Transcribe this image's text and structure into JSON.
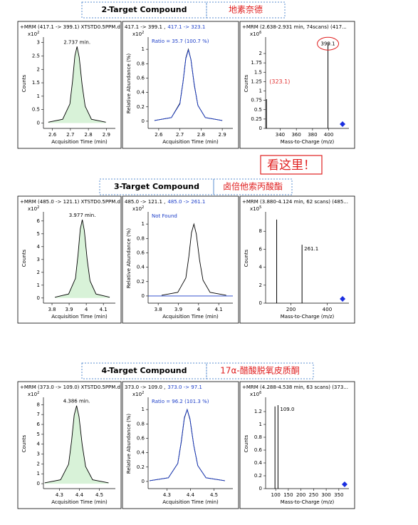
{
  "sections": [
    {
      "title": "2-Target Compound",
      "name": "地素奈德",
      "panels": [
        {
          "kind": "chromatogram",
          "header": "+MRM (417.1 -> 399.1) XTSTD0.5PPM.d",
          "peak_label": "2.737 min.",
          "y_label": "Counts",
          "multiplier": "x10",
          "exponent": "2",
          "x_label": "Acquisition Time (min)",
          "xlim": [
            2.55,
            2.95
          ],
          "xticks": [
            2.6,
            2.7,
            2.8,
            2.9
          ],
          "ylim": [
            -0.2,
            3.15
          ],
          "yticks": [
            0,
            0.5,
            1,
            1.5,
            2,
            2.5,
            3
          ],
          "trace": {
            "x": [
              2.577,
              2.657,
              2.697,
              2.712,
              2.725,
              2.737,
              2.749,
              2.765,
              2.782,
              2.817,
              2.897
            ],
            "y": [
              0.03,
              0.14,
              0.71,
              1.57,
              2.51,
              2.85,
              2.45,
              1.43,
              0.63,
              0.14,
              0.03
            ]
          }
        },
        {
          "kind": "ratio",
          "header": "417.1 -> 399.1 ,",
          "header_highlight": "417.1 -> 323.1",
          "note": "Ratio = 35.7 (100.7 %)",
          "y_label": "Relative Abundance (%)",
          "multiplier": "x10",
          "exponent": "2",
          "x_label": "Acquisition Time (min)",
          "xlim": [
            2.55,
            2.95
          ],
          "xticks": [
            2.6,
            2.7,
            2.8,
            2.9
          ],
          "ylim": [
            -0.1,
            1.15
          ],
          "yticks": [
            0,
            0.2,
            0.4,
            0.6,
            0.8,
            1
          ],
          "trace": {
            "x": [
              2.58,
              2.66,
              2.7,
              2.715,
              2.728,
              2.74,
              2.752,
              2.768,
              2.785,
              2.82,
              2.9
            ],
            "y": [
              0.01,
              0.05,
              0.25,
              0.55,
              0.88,
              1,
              0.86,
              0.5,
              0.22,
              0.05,
              0.01
            ]
          },
          "trace2": {
            "x": [
              2.58,
              2.66,
              2.7,
              2.715,
              2.728,
              2.74,
              2.752,
              2.768,
              2.785,
              2.82,
              2.9
            ],
            "y": [
              0.01,
              0.05,
              0.24,
              0.55,
              0.87,
              0.99,
              0.86,
              0.51,
              0.22,
              0.05,
              0.01
            ]
          }
        },
        {
          "kind": "spectrum",
          "header": "+MRM (2.638-2.931 min, 74scans) (417...",
          "y_label": "Counts",
          "multiplier": "x10",
          "exponent": "6",
          "x_label": "Mass-to-Charge (m/z)",
          "xlim": [
            322,
            425
          ],
          "xticks": [
            340,
            360,
            380,
            400
          ],
          "ylim": [
            0,
            2.4
          ],
          "yticks": [
            0,
            0.25,
            0.5,
            0.75,
            1,
            1.25,
            1.5,
            1.75,
            2
          ],
          "peaks": [
            {
              "mz": 323.1,
              "intensity": 0.78,
              "label": "(323.1)",
              "label_color": "#e03030"
            },
            {
              "mz": 399.1,
              "intensity": 2.3,
              "label": "399.1",
              "circled": true
            }
          ],
          "precursor": 417.1
        }
      ]
    },
    {
      "title": "3-Target Compound",
      "name": "卤倍他索丙酸酯",
      "panels": [
        {
          "kind": "chromatogram",
          "header": "+MRM (485.0 -> 121.1) XTSTD0.5PPM.d",
          "peak_label": "3.977 min.",
          "y_label": "Counts",
          "multiplier": "x10",
          "exponent": "2",
          "x_label": "Acquisition Time (min)",
          "xlim": [
            3.75,
            4.17
          ],
          "xticks": [
            3.8,
            3.9,
            4,
            4.1
          ],
          "ylim": [
            -0.4,
            6.6
          ],
          "yticks": [
            0,
            1,
            2,
            3,
            4,
            5,
            6
          ],
          "trace": {
            "x": [
              3.817,
              3.897,
              3.937,
              3.952,
              3.965,
              3.977,
              3.989,
              4.005,
              4.022,
              4.057,
              4.137
            ],
            "y": [
              0.06,
              0.31,
              1.53,
              3.36,
              5.37,
              6.1,
              5.25,
              3.05,
              1.34,
              0.31,
              0.06
            ]
          }
        },
        {
          "kind": "ratio",
          "header": "485.0 -> 121.1 ,",
          "header_highlight": "485.0 -> 261.1",
          "note": "Not Found",
          "y_label": "Relative Abundance (%)",
          "multiplier": "x10",
          "exponent": "2",
          "x_label": "Acquisition Time (min)",
          "xlim": [
            3.75,
            4.17
          ],
          "xticks": [
            3.8,
            3.9,
            4,
            4.1
          ],
          "ylim": [
            -0.1,
            1.15
          ],
          "yticks": [
            0,
            0.2,
            0.4,
            0.6,
            0.8,
            1
          ],
          "trace": {
            "x": [
              3.817,
              3.897,
              3.937,
              3.952,
              3.965,
              3.977,
              3.989,
              4.005,
              4.022,
              4.057,
              4.137
            ],
            "y": [
              0.01,
              0.05,
              0.25,
              0.55,
              0.88,
              1,
              0.86,
              0.5,
              0.22,
              0.05,
              0.01
            ]
          },
          "trace2": {
            "x": [
              3.75,
              4.17
            ],
            "y": [
              0,
              0
            ]
          }
        },
        {
          "kind": "spectrum",
          "header": "+MRM (3.880-4.124 min, 62 scans) (485...",
          "y_label": "Counts",
          "multiplier": "x10",
          "exponent": "5",
          "x_label": "Mass-to-Charge (m/z)",
          "xlim": [
            60,
            520
          ],
          "xticks": [
            200,
            400
          ],
          "ylim": [
            0,
            10
          ],
          "yticks": [
            0,
            2,
            4,
            6,
            8
          ],
          "peaks": [
            {
              "mz": 121.1,
              "intensity": 9.3
            },
            {
              "mz": 261.1,
              "intensity": 6.5,
              "label": "261.1"
            }
          ],
          "precursor": 485.0
        }
      ]
    },
    {
      "title": "4-Target Compound",
      "name": "17α-醋酸脱氧皮质酮",
      "panels": [
        {
          "kind": "chromatogram",
          "header": "+MRM (373.0 -> 109.0) XTSTD0.5PPM.d",
          "peak_label": "4.386 min.",
          "y_label": "Counts",
          "multiplier": "x10",
          "exponent": "2",
          "x_label": "Acquisition Time (min)",
          "xlim": [
            4.22,
            4.58
          ],
          "xticks": [
            4.3,
            4.4,
            4.5
          ],
          "ylim": [
            -0.5,
            8.6
          ],
          "yticks": [
            0,
            1,
            2,
            3,
            4,
            5,
            6,
            7,
            8
          ],
          "trace": {
            "x": [
              4.226,
              4.306,
              4.346,
              4.361,
              4.374,
              4.386,
              4.398,
              4.414,
              4.431,
              4.466,
              4.546
            ],
            "y": [
              0.08,
              0.4,
              1.98,
              4.35,
              6.95,
              7.9,
              6.79,
              3.95,
              1.74,
              0.4,
              0.08
            ]
          }
        },
        {
          "kind": "ratio",
          "header": "373.0 -> 109.0 ,",
          "header_highlight": "373.0 -> 97.1",
          "note": "Ratio = 96.2 (101.3 %)",
          "y_label": "Relative Abundance (%)",
          "multiplier": "x10",
          "exponent": "2",
          "x_label": "Acquisition Time (min)",
          "xlim": [
            4.22,
            4.58
          ],
          "xticks": [
            4.3,
            4.4,
            4.5
          ],
          "ylim": [
            -0.1,
            1.15
          ],
          "yticks": [
            0,
            0.2,
            0.4,
            0.6,
            0.8,
            1
          ],
          "trace": {
            "x": [
              4.226,
              4.306,
              4.346,
              4.361,
              4.374,
              4.386,
              4.398,
              4.414,
              4.431,
              4.466,
              4.546
            ],
            "y": [
              0.01,
              0.05,
              0.25,
              0.55,
              0.88,
              1,
              0.86,
              0.5,
              0.22,
              0.05,
              0.01
            ]
          },
          "trace2": {
            "x": [
              4.226,
              4.306,
              4.346,
              4.361,
              4.374,
              4.386,
              4.398,
              4.414,
              4.431,
              4.466,
              4.546
            ],
            "y": [
              0.01,
              0.05,
              0.25,
              0.56,
              0.89,
              1,
              0.87,
              0.5,
              0.22,
              0.05,
              0.01
            ]
          }
        },
        {
          "kind": "spectrum",
          "header": "+MRM (4.288-4.538 min, 63 scans) (373...",
          "y_label": "Counts",
          "multiplier": "x10",
          "exponent": "6",
          "x_label": "Mass-to-Charge (m/z)",
          "xlim": [
            60,
            390
          ],
          "xticks": [
            100,
            150,
            200,
            250,
            300,
            350
          ],
          "ylim": [
            0,
            1.4
          ],
          "yticks": [
            0,
            0.2,
            0.4,
            0.6,
            0.8,
            1,
            1.2
          ],
          "peaks": [
            {
              "mz": 97.1,
              "intensity": 1.28
            },
            {
              "mz": 109.0,
              "intensity": 1.3,
              "label": "109.0"
            }
          ],
          "precursor": 373.0
        }
      ]
    }
  ],
  "callout": "看这里！"
}
